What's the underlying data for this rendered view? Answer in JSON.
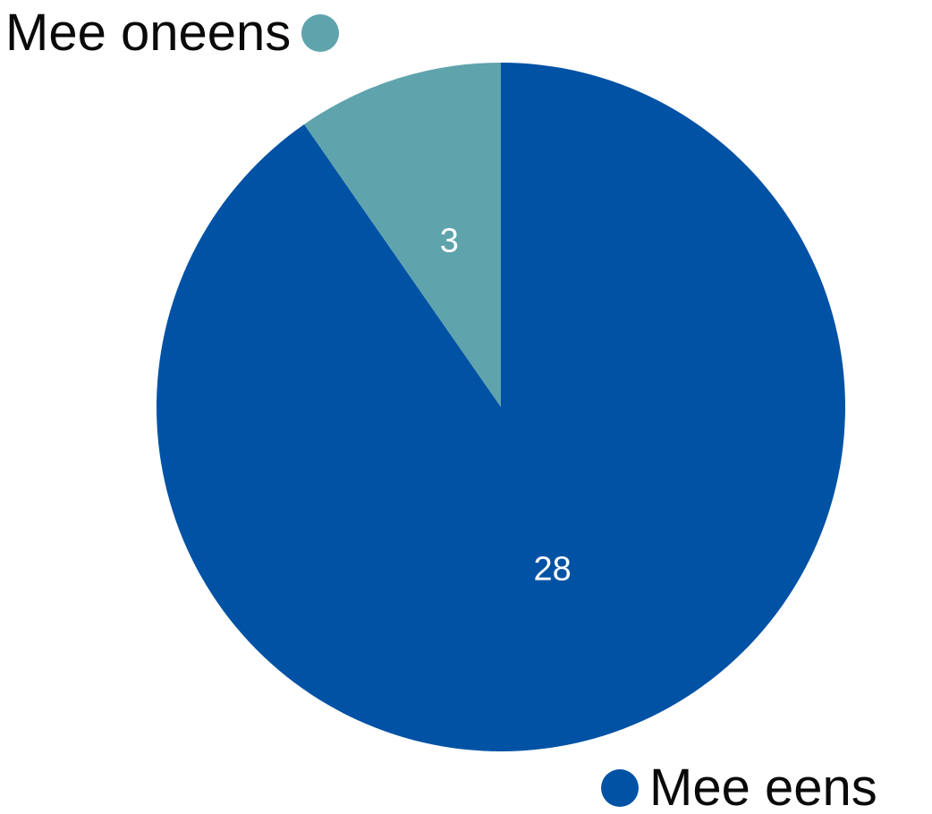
{
  "chart_data": {
    "type": "pie",
    "title": "",
    "categories": [
      "Mee eens",
      "Mee oneens"
    ],
    "values": [
      28,
      3
    ],
    "colors": [
      "#0052a5",
      "#5fa3ad"
    ],
    "start_angle_deg": 0,
    "direction": "clockwise",
    "slices": [
      {
        "label": "Mee eens",
        "value": 28,
        "display": "28",
        "color": "#0052a5"
      },
      {
        "label": "Mee oneens",
        "value": 3,
        "display": "3",
        "color": "#5fa3ad"
      }
    ],
    "legend": {
      "entries": [
        {
          "label": "Mee oneens",
          "color": "#5fa3ad"
        },
        {
          "label": "Mee eens",
          "color": "#0052a5"
        }
      ]
    }
  }
}
